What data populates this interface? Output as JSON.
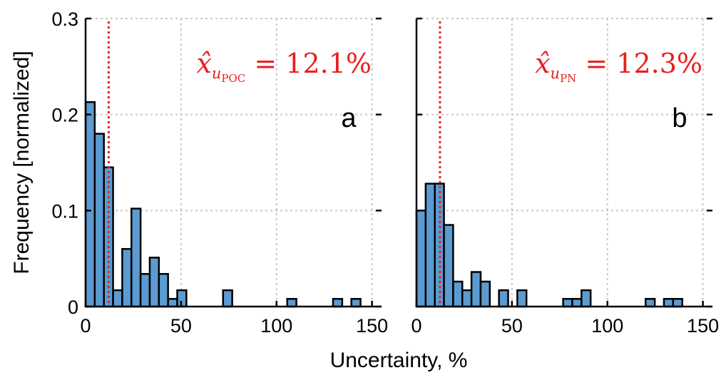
{
  "chart_data": [
    {
      "type": "bar",
      "panel": "a",
      "bin_width": 4.8,
      "bin_starts": [
        0,
        4.8,
        9.6,
        14.4,
        19.2,
        24,
        28.8,
        33.6,
        38.4,
        43.2,
        48,
        72,
        105.6,
        129.6,
        139.2
      ],
      "values": [
        0.213,
        0.18,
        0.145,
        0.017,
        0.06,
        0.102,
        0.034,
        0.051,
        0.034,
        0.008,
        0.017,
        0.017,
        0.008,
        0.008,
        0.008
      ],
      "median_line": 12.1,
      "annotation": {
        "base": "x̂",
        "sub_var": "u",
        "sub_sub": "POC",
        "rest": " = 12.1%"
      },
      "xlim": [
        0,
        155
      ],
      "ylim": [
        0,
        0.3
      ],
      "xticks": [
        "0",
        "50",
        "100",
        "150"
      ],
      "yticks": [
        "0",
        "0.1",
        "0.2",
        "0.3"
      ],
      "ylabel": "Frequency [normalized]",
      "grid": true
    },
    {
      "type": "bar",
      "panel": "b",
      "bin_width": 4.8,
      "bin_starts": [
        0,
        4.8,
        9.6,
        14.4,
        19.2,
        24,
        28.8,
        33.6,
        43.2,
        52.8,
        76.8,
        81.6,
        86.4,
        120,
        129.6,
        134.4
      ],
      "values": [
        0.1,
        0.128,
        0.128,
        0.085,
        0.026,
        0.017,
        0.036,
        0.026,
        0.017,
        0.017,
        0.008,
        0.008,
        0.017,
        0.008,
        0.008,
        0.008
      ],
      "median_line": 12.3,
      "annotation": {
        "base": "x̂",
        "sub_var": "u",
        "sub_sub": "PN",
        "rest": " = 12.3%"
      },
      "xlim": [
        0,
        155
      ],
      "ylim": [
        0,
        0.3
      ],
      "xticks": [
        "0",
        "50",
        "100",
        "150"
      ],
      "yticks": [],
      "grid": true
    }
  ],
  "xlabel": "Uncertainty, %",
  "colors": {
    "bar_fill": "#5b9bd1",
    "bar_edge": "#000000",
    "median_line": "#e8201e",
    "grid": "#c8c8c8"
  }
}
